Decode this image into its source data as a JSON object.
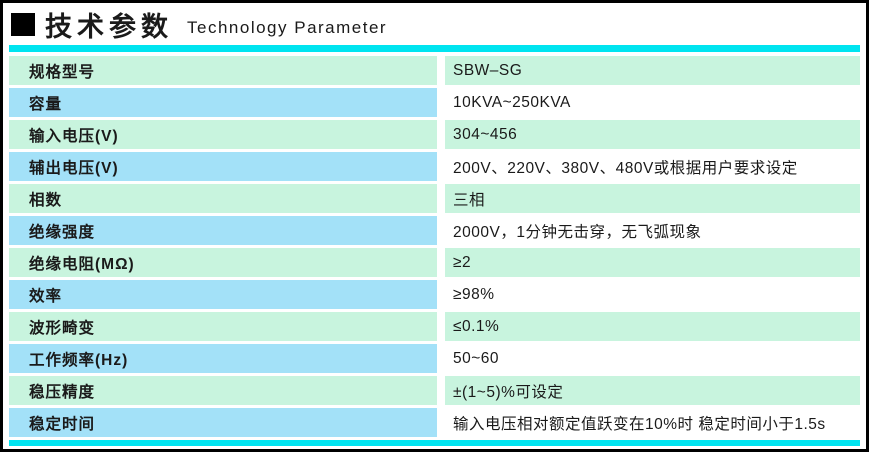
{
  "header": {
    "title_cn": "技术参数",
    "title_en": "Technology  Parameter"
  },
  "colors": {
    "accent_cyan": "#00e4f0",
    "row_green": "#c8f4de",
    "row_blue": "#a3e1f8",
    "frame_black": "#000000",
    "text": "#1a1a1a"
  },
  "table": {
    "rows": [
      {
        "label": "规格型号",
        "value": "SBW–SG"
      },
      {
        "label": "容量",
        "value": "10KVA~250KVA"
      },
      {
        "label": "输入电压(V)",
        "value": "304~456"
      },
      {
        "label": "辅出电压(V)",
        "value": "200V、220V、380V、480V或根据用户要求设定"
      },
      {
        "label": "相数",
        "value": "三相"
      },
      {
        "label": "绝缘强度",
        "value": "2000V，1分钟无击穿，无飞弧现象"
      },
      {
        "label": "绝缘电阻(MΩ)",
        "value": "≥2"
      },
      {
        "label": "效率",
        "value": "≥98%"
      },
      {
        "label": "波形畸变",
        "value": "≤0.1%"
      },
      {
        "label": "工作频率(Hz)",
        "value": "50~60"
      },
      {
        "label": "稳压精度",
        "value": "±(1~5)%可设定"
      },
      {
        "label": "稳定时间",
        "value": "输入电压相对额定值跃变在10%时 稳定时间小于1.5s"
      }
    ]
  }
}
